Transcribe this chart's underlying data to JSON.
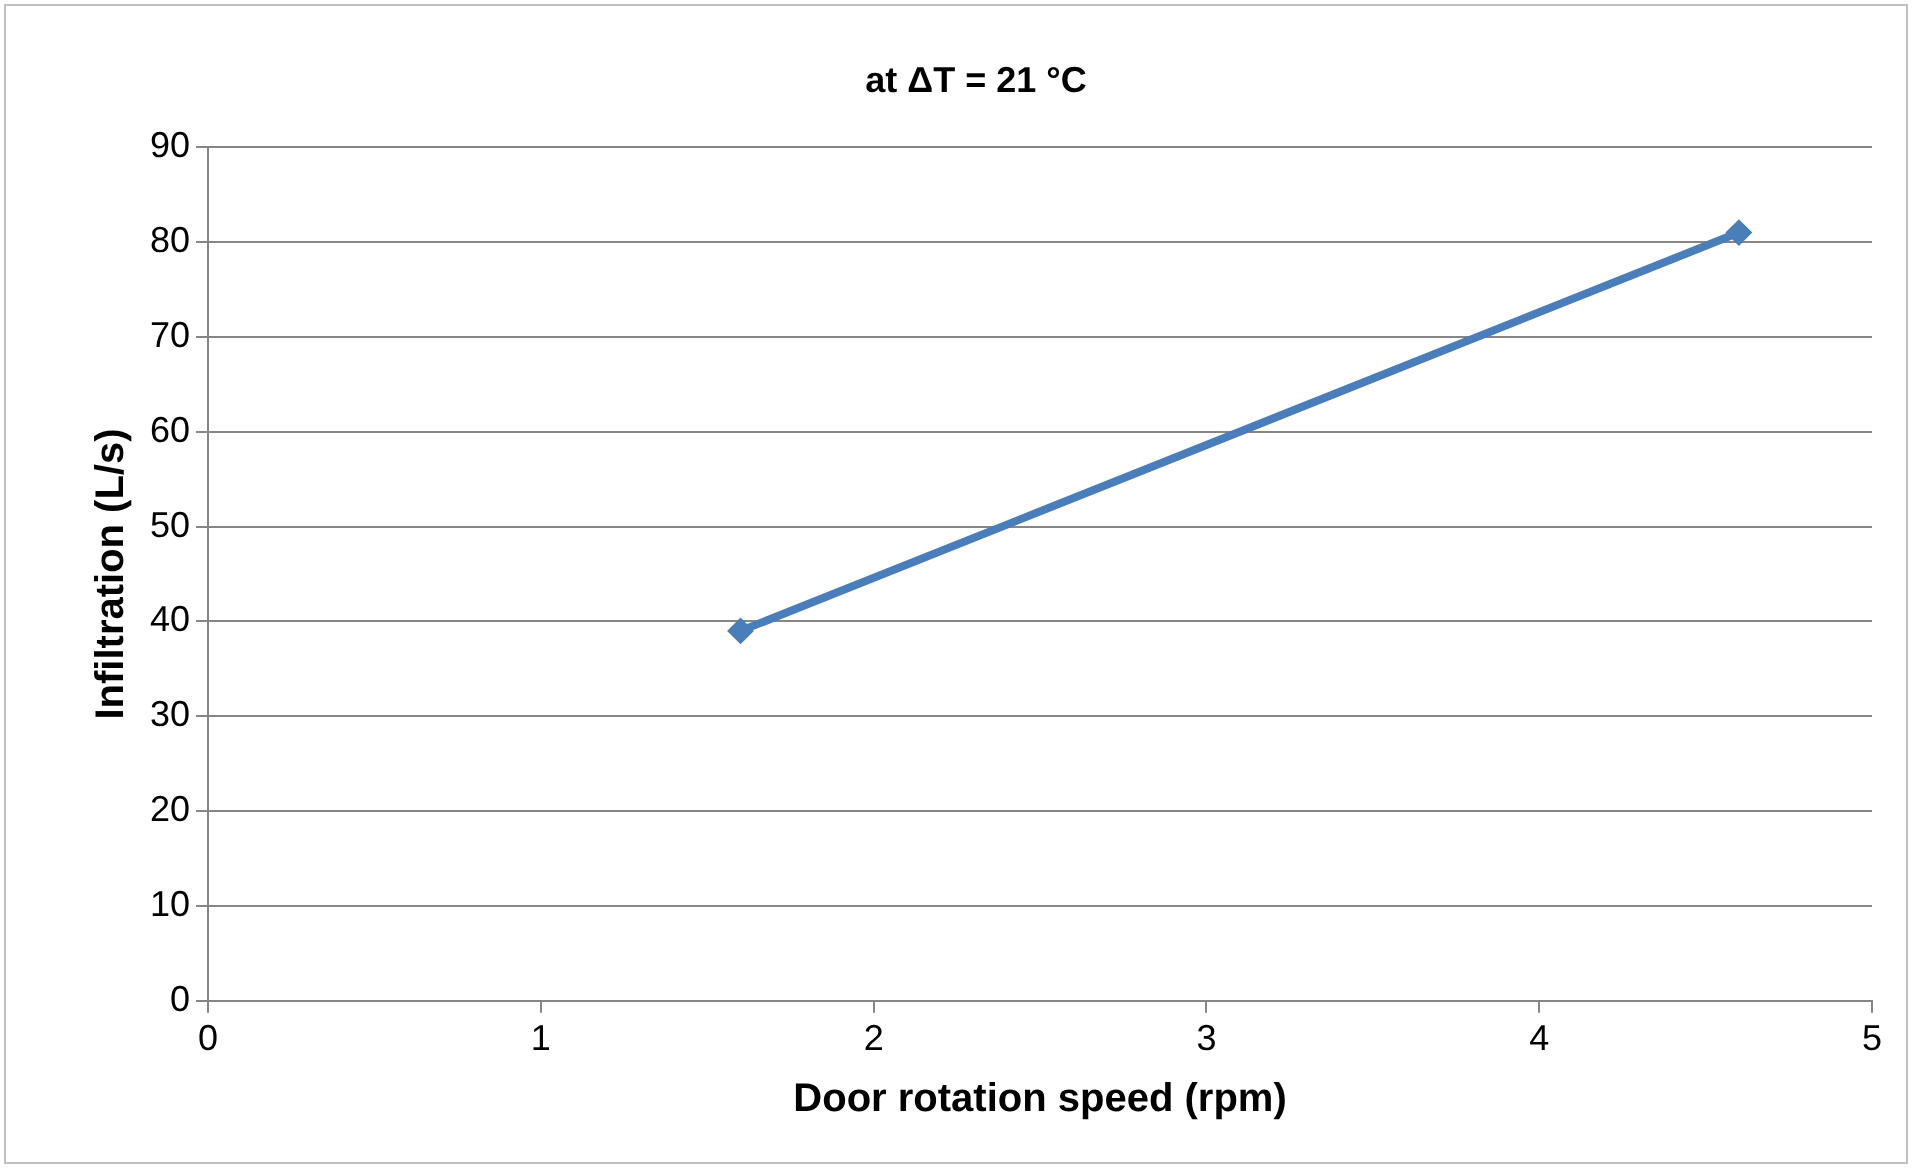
{
  "chart_data": {
    "type": "line",
    "title": "at ΔT = 21 °C",
    "xlabel": "Door rotation speed (rpm)",
    "ylabel": "Infiltration (L/s)",
    "series": [
      {
        "color": "#4a7ebb",
        "x": [
          1.6,
          4.6
        ],
        "values": [
          39,
          81
        ]
      }
    ],
    "xlim": [
      0,
      5
    ],
    "xticks": [
      0,
      1,
      2,
      3,
      4,
      5
    ],
    "ylim": [
      0,
      90
    ],
    "yticks": [
      0,
      10,
      20,
      30,
      40,
      50,
      60,
      70,
      80,
      90
    ],
    "grid": "y",
    "legend": false,
    "marker": "diamond",
    "line_style": "solid"
  }
}
